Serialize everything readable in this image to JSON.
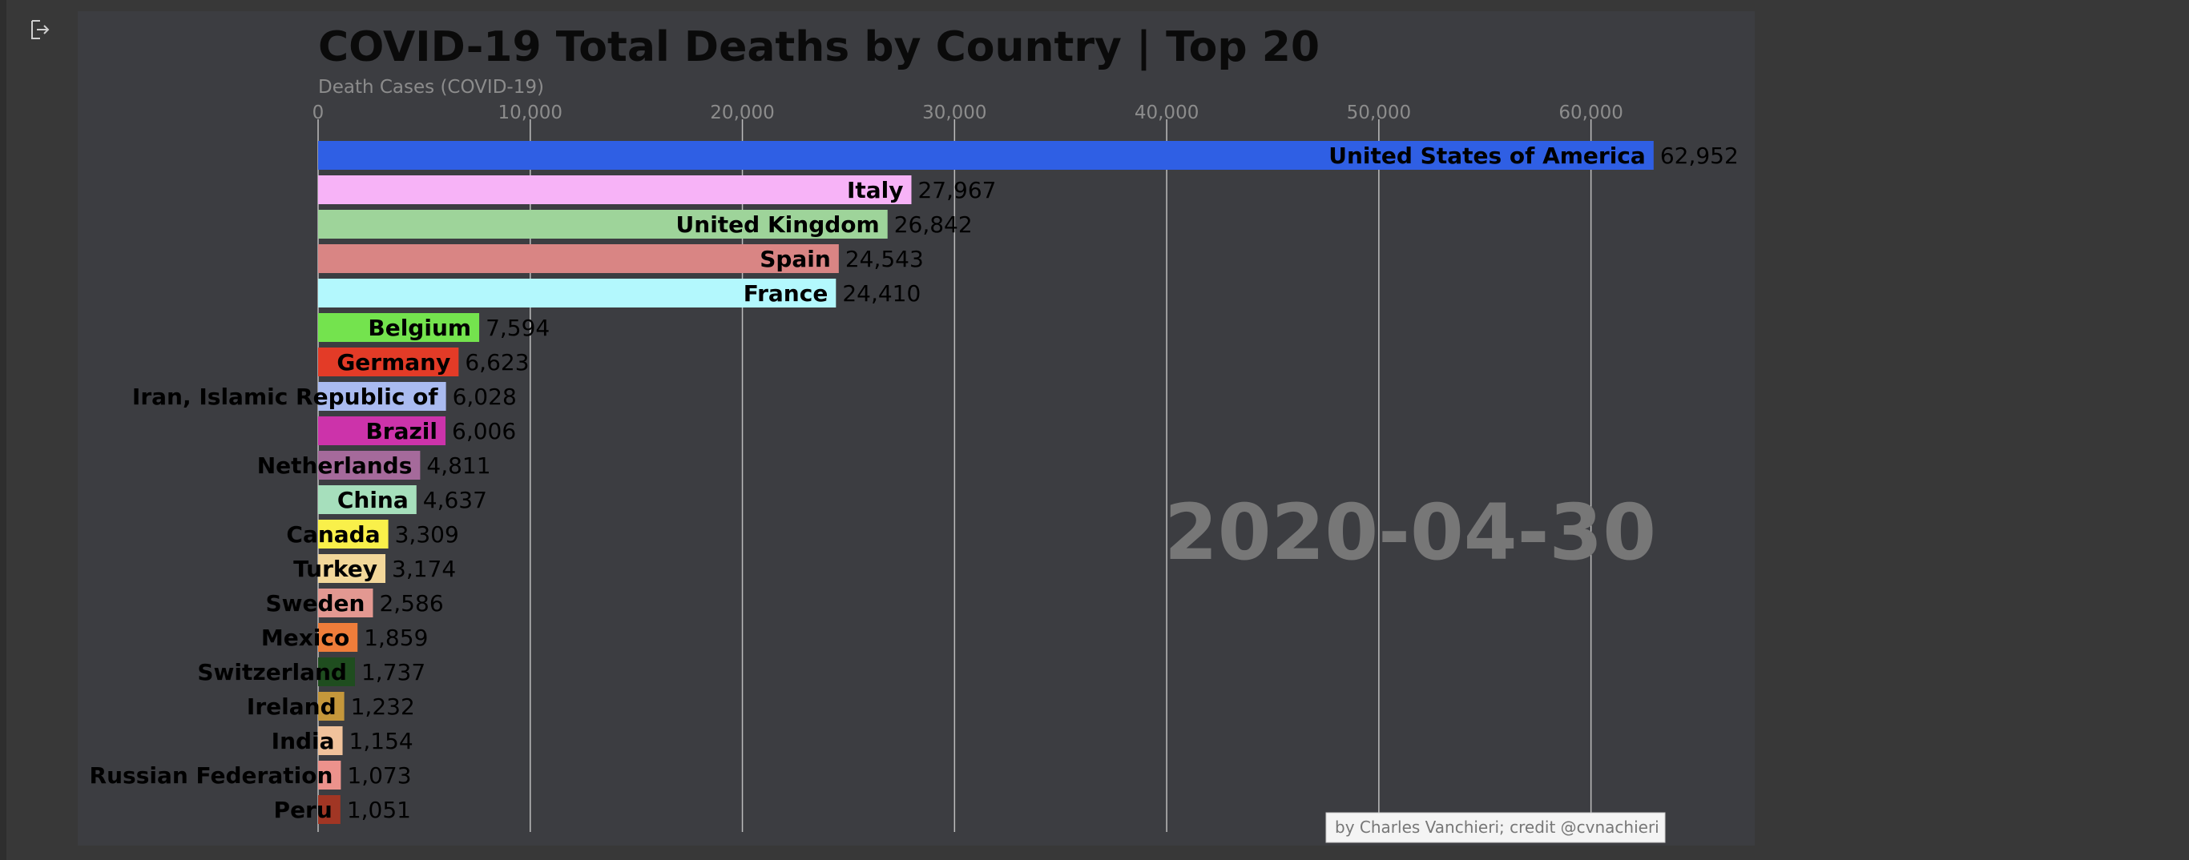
{
  "chart_data": {
    "type": "bar",
    "orientation": "horizontal",
    "title": "COVID-19 Total Deaths by Country | Top 20",
    "xlabel": "Death Cases (COVID-19)",
    "ylabel": "",
    "xlim": [
      0,
      67000
    ],
    "x_ticks": [
      0,
      10000,
      20000,
      30000,
      40000,
      50000,
      60000
    ],
    "x_tick_labels": [
      "0",
      "10,000",
      "20,000",
      "30,000",
      "40,000",
      "50,000",
      "60,000"
    ],
    "grid": true,
    "tick_position": "top",
    "date": "2020-04-30",
    "credit": "by Charles Vanchieri; credit @cvnachieri",
    "categories": [
      "United States of America",
      "Italy",
      "United Kingdom",
      "Spain",
      "France",
      "Belgium",
      "Germany",
      "Iran, Islamic Republic of",
      "Brazil",
      "Netherlands",
      "China",
      "Canada",
      "Turkey",
      "Sweden",
      "Mexico",
      "Switzerland",
      "Ireland",
      "India",
      "Russian Federation",
      "Peru"
    ],
    "values": [
      62952,
      27967,
      26842,
      24543,
      24410,
      7594,
      6623,
      6028,
      6006,
      4811,
      4637,
      3309,
      3174,
      2586,
      1859,
      1737,
      1232,
      1154,
      1073,
      1051
    ],
    "value_labels": [
      "62,952",
      "27,967",
      "26,842",
      "24,543",
      "24,410",
      "7,594",
      "6,623",
      "6,028",
      "6,006",
      "4,811",
      "4,637",
      "3,309",
      "3,174",
      "2,586",
      "1,859",
      "1,737",
      "1,232",
      "1,154",
      "1,073",
      "1,051"
    ],
    "colors": [
      "#2f5fe4",
      "#f7b3f7",
      "#9ed49a",
      "#d98584",
      "#b3f8fd",
      "#74e34e",
      "#e33b27",
      "#aabbf0",
      "#cc33aa",
      "#a56a9b",
      "#a6dfbc",
      "#f9f04a",
      "#f2d79a",
      "#e39891",
      "#ef7d3a",
      "#1f4d1f",
      "#c4973b",
      "#f0c29b",
      "#ec928c",
      "#a13624"
    ]
  },
  "figure": {
    "background": "#3c3d41",
    "page_background": "#383838"
  },
  "icons": {
    "output": "output-exit-icon"
  }
}
